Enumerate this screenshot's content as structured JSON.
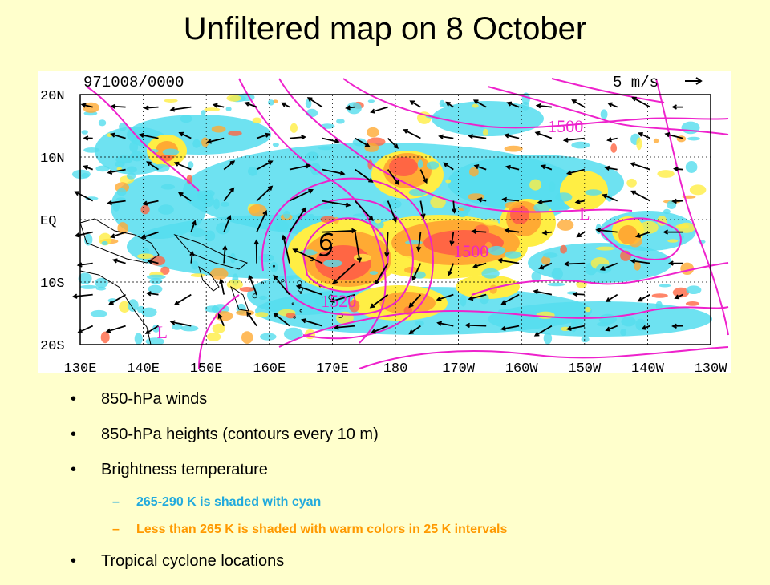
{
  "title": "Unfiltered map on 8 October",
  "map": {
    "datetime_label": "971008/0000",
    "vector_scale_label": "5 m/s",
    "lat_labels": [
      "20N",
      "10N",
      "EQ",
      "10S",
      "20S"
    ],
    "lon_labels": [
      "130E",
      "140E",
      "150E",
      "160E",
      "170E",
      "180",
      "170W",
      "160W",
      "150W",
      "140W",
      "130W"
    ],
    "contour_labels": [
      {
        "text": "1500",
        "lon": -153,
        "lat": 14
      },
      {
        "text": "1500",
        "lon": -168,
        "lat": -6
      },
      {
        "text": "1520",
        "lon": 171,
        "lat": -14
      }
    ],
    "low_markers": [
      {
        "text": "L",
        "lon": -150,
        "lat": 0
      },
      {
        "text": "L",
        "lon": 143,
        "lat": -19
      }
    ],
    "cyclone_symbol": {
      "name": "tropical-cyclone",
      "lon": 169,
      "lat": -4
    },
    "colors": {
      "cyan_shading": "#55ddee",
      "warm_yellow": "#ffee44",
      "warm_orange": "#ffaa33",
      "warm_red": "#ff6644",
      "contours": "#ee22cc"
    }
  },
  "bullets": [
    {
      "text": "850-hPa winds"
    },
    {
      "text": "850-hPa heights (contours every 10 m)"
    },
    {
      "text": "Brightness temperature",
      "subitems": [
        {
          "text": "265-290 K is shaded with cyan",
          "color": "#22aadd"
        },
        {
          "text": "Less than 265 K is shaded with warm colors in 25 K intervals",
          "color": "#ff9900"
        }
      ]
    },
    {
      "text": "Tropical cyclone locations"
    }
  ],
  "bullet_glyph": "•",
  "dash_glyph": "–"
}
